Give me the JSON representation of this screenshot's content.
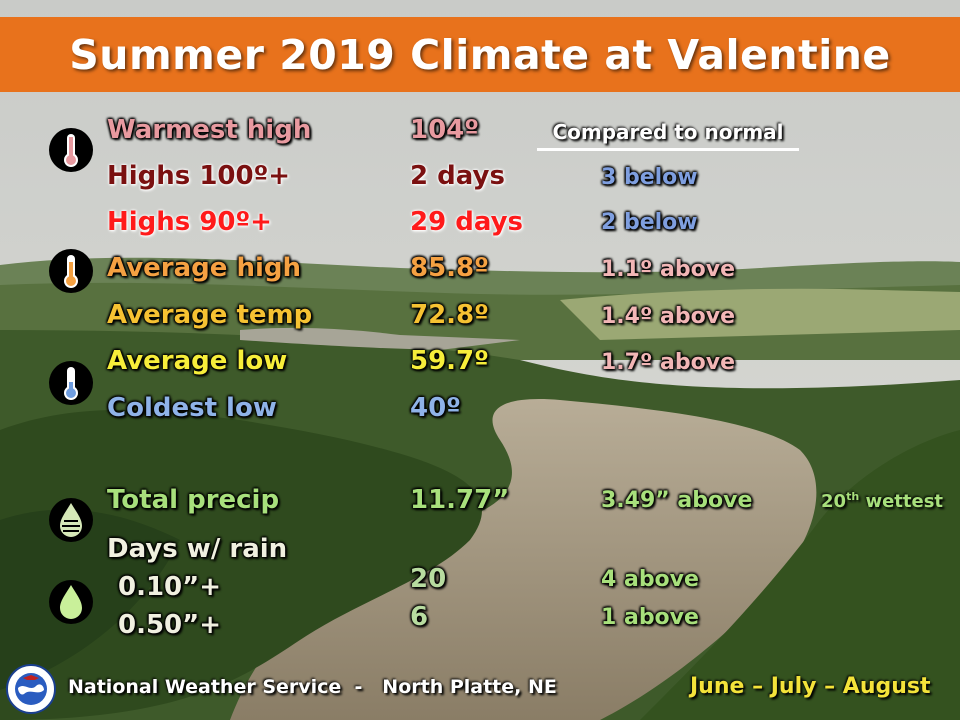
{
  "title": "Summer 2019 Climate at Valentine",
  "compared_header": "Compared to normal",
  "rows": [
    {
      "label": "Warmest high",
      "value": "104º",
      "compare": ""
    },
    {
      "label": "Highs 100º+",
      "value": "2 days",
      "compare": "3 below"
    },
    {
      "label": "Highs 90º+",
      "value": "29 days",
      "compare": "2 below"
    },
    {
      "label": "Average high",
      "value": "85.8º",
      "compare": "1.1º above"
    },
    {
      "label": "Average temp",
      "value": "72.8º",
      "compare": "1.4º above"
    },
    {
      "label": "Average low",
      "value": "59.7º",
      "compare": "1.7º above"
    },
    {
      "label": "Coldest low",
      "value": "40º",
      "compare": ""
    },
    {
      "label": "Total precip",
      "value": "11.77”",
      "compare": "3.49” above"
    },
    {
      "label": "Days w/ rain",
      "value": "",
      "compare": ""
    },
    {
      "label": "0.10”+",
      "value": "20",
      "compare": "4 above"
    },
    {
      "label": "0.50”+",
      "value": "6",
      "compare": "1 above"
    }
  ],
  "rank": {
    "number": "20",
    "suffix": "th",
    "text": "wettest"
  },
  "footer": {
    "agency": "National Weather Service",
    "separator": "-",
    "office": "North Platte, NE"
  },
  "period": "June – July – August",
  "icons": [
    "thermometer-red-icon",
    "thermometer-orange-icon",
    "thermometer-blue-icon",
    "precip-drop-icon",
    "rain-drop-icon",
    "nws-logo"
  ],
  "colors": {
    "banner": "#e8721c",
    "warmest": "#e89aa0",
    "highs100": "#7a1010",
    "highs90": "#ff1a1a",
    "avg_high": "#f5a142",
    "avg_temp": "#f6c232",
    "avg_low": "#f7ee3a",
    "coldest": "#8fb3e8",
    "precip": "#a8e07c",
    "below": "#7f9fe0",
    "above": "#f2b6b6",
    "dates": "#f4e33a"
  }
}
